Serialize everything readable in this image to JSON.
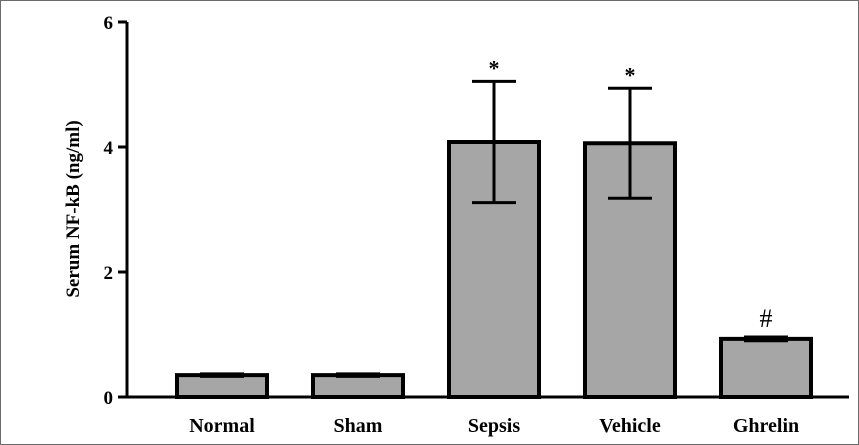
{
  "chart_data": {
    "type": "bar",
    "title": "",
    "xlabel": "",
    "ylabel": "Serum NF-kB (ng/ml)",
    "categories": [
      "Normal",
      "Sham",
      "Sepsis",
      "Vehicle",
      "Ghrelin"
    ],
    "values": [
      0.35,
      0.35,
      4.08,
      4.06,
      0.93
    ],
    "error": [
      0.02,
      0.02,
      0.97,
      0.88,
      0.03
    ],
    "annotations": [
      "",
      "",
      "*",
      "*",
      "#"
    ],
    "ylim": [
      0,
      6
    ],
    "yticks": [
      0,
      2,
      4,
      6
    ],
    "grid": false,
    "colors": {
      "bar_fill": "#a6a6a6",
      "bar_stroke": "#000000",
      "axis": "#000000"
    }
  }
}
